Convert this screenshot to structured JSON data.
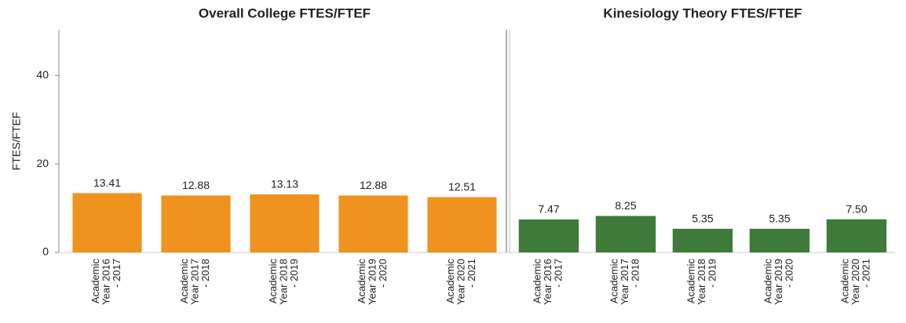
{
  "chart_data": [
    {
      "type": "bar",
      "title": "Overall College FTES/FTEF",
      "ylabel": "FTES/FTEF",
      "categories": [
        "Academic Year 2016 - 2017",
        "Academic Year 2017 - 2018",
        "Academic Year 2018 - 2019",
        "Academic Year 2019 - 2020",
        "Academic Year 2020 - 2021"
      ],
      "values": [
        13.41,
        12.88,
        13.13,
        12.88,
        12.51
      ],
      "color": "#f0921e",
      "ylim": [
        0,
        50
      ],
      "yticks": [
        0,
        20,
        40
      ]
    },
    {
      "type": "bar",
      "title": "Kinesiology Theory FTES/FTEF",
      "categories": [
        "Academic Year 2016 - 2017",
        "Academic Year 2017 - 2018",
        "Academic Year 2018 - 2019",
        "Academic Year 2019 - 2020",
        "Academic Year 2020 - 2021"
      ],
      "values": [
        7.47,
        8.25,
        5.35,
        5.35,
        7.5
      ],
      "value_labels": [
        "7.47",
        "8.25",
        "5.35",
        "5.35",
        "7.50"
      ],
      "color": "#3f7a3b",
      "ylim": [
        0,
        50
      ]
    }
  ]
}
